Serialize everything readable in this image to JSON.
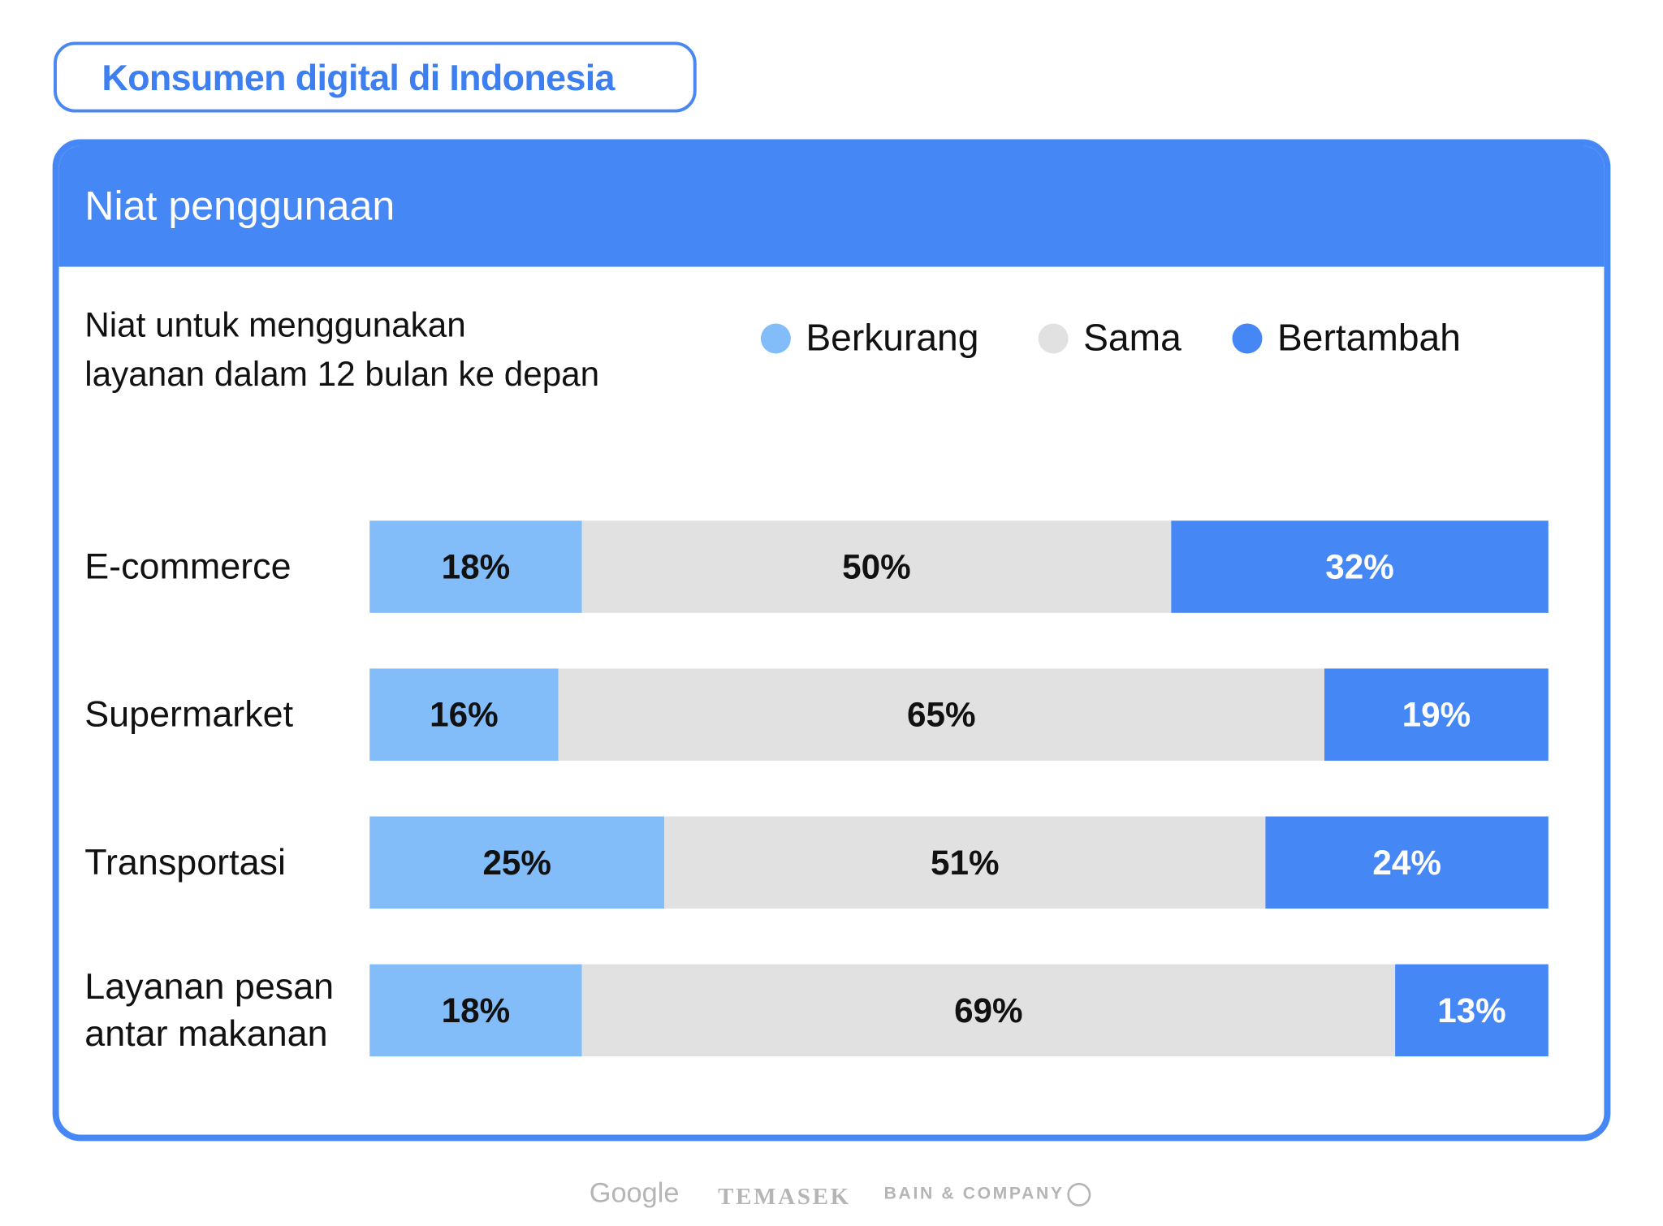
{
  "header": {
    "title": "Konsumen digital di Indonesia"
  },
  "card": {
    "title": "Niat penggunaan",
    "subtitle_lines": [
      "Niat untuk menggunakan",
      "layanan dalam 12 bulan ke depan"
    ]
  },
  "colors": {
    "berkurang": "#82bcf9",
    "sama": "#e1e1e1",
    "bertambah": "#4587f5"
  },
  "chart_data": {
    "type": "bar",
    "orientation": "horizontal",
    "stacked": true,
    "normalized_percent": true,
    "categories": [
      "E-commerce",
      "Supermarket",
      "Transportasi",
      "Layanan pesan antar makanan"
    ],
    "series": [
      {
        "name": "Berkurang",
        "values": [
          18,
          16,
          25,
          18
        ],
        "labels": [
          "18%",
          "16%",
          "25%",
          "18%"
        ]
      },
      {
        "name": "Sama",
        "values": [
          50,
          65,
          51,
          69
        ],
        "labels": [
          "50%",
          "65%",
          "51%",
          "69%"
        ]
      },
      {
        "name": "Bertambah",
        "values": [
          32,
          19,
          24,
          13
        ],
        "labels": [
          "32%",
          "19%",
          "24%",
          "13%"
        ]
      }
    ],
    "legend_placement": "top-right",
    "grid": false,
    "xlim": [
      0,
      100
    ]
  },
  "category_lines": [
    [
      "E-commerce"
    ],
    [
      "Supermarket"
    ],
    [
      "Transportasi"
    ],
    [
      "Layanan pesan",
      "antar makanan"
    ]
  ],
  "footer": {
    "logos": [
      "Google",
      "TEMASEK",
      "BAIN & COMPANY"
    ]
  }
}
